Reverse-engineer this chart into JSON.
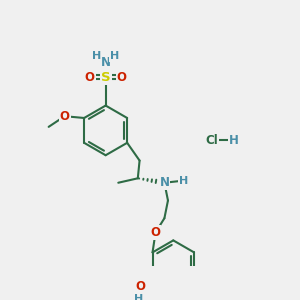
{
  "bg_color": "#f0f0f0",
  "bond_color": "#2e6b45",
  "atom_colors": {
    "N": "#4a8fa8",
    "O": "#cc2200",
    "S": "#cccc00",
    "H": "#4a8fa8",
    "C": "#2e6b45",
    "Cl": "#2e6b45"
  },
  "font_size": 8.5
}
